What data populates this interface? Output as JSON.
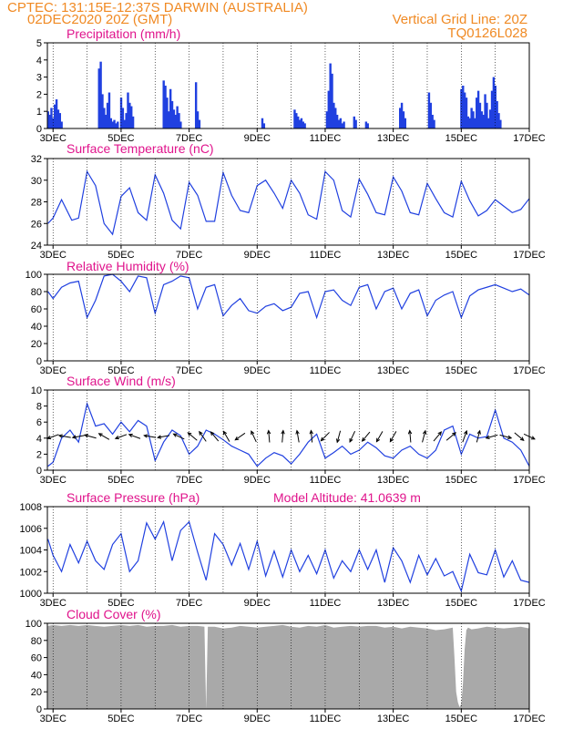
{
  "header": {
    "left1": "CPTEC:    131:15E-12:37S   DARWIN (AUSTRALIA)",
    "left2": "02DEC2020 20Z (GMT)",
    "right1": "Vertical Grid Line: 20Z",
    "right2": "TQ0126L028"
  },
  "colors": {
    "header": "#f08a24",
    "title": "#e0148c",
    "line": "#2040e0",
    "cloud": "#a9a9a9",
    "arrow": "#000000"
  },
  "x_axis": {
    "start_day": 2.833,
    "end_day": 17.0,
    "tick_days": [
      3,
      5,
      7,
      9,
      11,
      13,
      15,
      17
    ],
    "tick_labels": [
      "3DEC",
      "5DEC",
      "7DEC",
      "9DEC",
      "11DEC",
      "13DEC",
      "15DEC",
      "17DEC"
    ]
  },
  "chart_data": [
    {
      "type": "bar",
      "title": "Precipitation (mm/h)",
      "ylim": [
        0,
        5
      ],
      "yticks": [
        "0",
        "1",
        "2",
        "3",
        "4",
        "5"
      ],
      "x": [
        2.85,
        2.9,
        2.95,
        3.0,
        3.05,
        3.1,
        3.15,
        3.2,
        3.25,
        4.35,
        4.4,
        4.45,
        4.5,
        4.55,
        4.6,
        4.65,
        4.7,
        4.75,
        4.8,
        4.85,
        4.9,
        5.0,
        5.05,
        5.1,
        5.15,
        5.2,
        5.25,
        5.3,
        5.35,
        6.25,
        6.3,
        6.35,
        6.4,
        6.45,
        6.5,
        6.55,
        6.6,
        6.65,
        6.7,
        6.75,
        7.2,
        7.25,
        7.3,
        9.15,
        9.2,
        10.1,
        10.15,
        10.2,
        10.25,
        10.3,
        10.35,
        10.4,
        11.05,
        11.1,
        11.15,
        11.2,
        11.25,
        11.3,
        11.35,
        11.4,
        11.45,
        11.5,
        11.55,
        11.85,
        11.9,
        12.2,
        12.25,
        13.2,
        13.25,
        13.3,
        13.35,
        14.05,
        14.1,
        14.15,
        14.2,
        15.0,
        15.05,
        15.1,
        15.15,
        15.2,
        15.25,
        15.3,
        15.35,
        15.4,
        15.45,
        15.5,
        15.55,
        15.6,
        15.65,
        15.7,
        15.75,
        15.8,
        15.85,
        15.9,
        15.95,
        16.0,
        16.05,
        16.1,
        16.15
      ],
      "values": [
        1.0,
        0.8,
        1.2,
        0.6,
        1.4,
        1.7,
        1.1,
        0.9,
        0.4,
        3.5,
        3.9,
        2.0,
        1.2,
        0.8,
        1.5,
        2.1,
        0.6,
        0.4,
        0.5,
        0.3,
        0.4,
        1.8,
        1.2,
        0.5,
        0.9,
        2.1,
        1.5,
        1.3,
        0.7,
        2.8,
        2.5,
        1.8,
        1.0,
        2.3,
        1.6,
        1.1,
        0.8,
        1.3,
        0.9,
        0.4,
        2.7,
        1.0,
        0.5,
        0.6,
        0.3,
        1.1,
        0.9,
        0.7,
        0.5,
        0.6,
        0.4,
        0.3,
        1.0,
        2.2,
        3.8,
        3.2,
        1.5,
        1.2,
        0.8,
        0.5,
        0.6,
        0.3,
        0.4,
        0.7,
        0.5,
        0.4,
        0.3,
        1.2,
        1.5,
        1.0,
        0.6,
        2.1,
        1.5,
        0.8,
        0.5,
        2.3,
        2.5,
        2.1,
        1.8,
        0.7,
        0.6,
        1.2,
        1.0,
        0.6,
        1.8,
        2.2,
        1.5,
        1.0,
        0.8,
        2.0,
        1.5,
        0.6,
        1.1,
        2.2,
        3.0,
        2.5,
        1.6,
        0.9,
        0.5
      ]
    },
    {
      "type": "line",
      "title": "Surface Temperature (nC)",
      "ylim": [
        24,
        32
      ],
      "yticks": [
        "24",
        "26",
        "28",
        "30",
        "32"
      ],
      "x": [
        2.85,
        3.0,
        3.25,
        3.55,
        3.75,
        4.0,
        4.25,
        4.5,
        4.75,
        5.0,
        5.25,
        5.5,
        5.75,
        6.0,
        6.25,
        6.5,
        6.75,
        7.0,
        7.25,
        7.5,
        7.75,
        8.0,
        8.25,
        8.5,
        8.75,
        9.0,
        9.25,
        9.5,
        9.75,
        10.0,
        10.25,
        10.5,
        10.75,
        11.0,
        11.25,
        11.5,
        11.75,
        12.0,
        12.25,
        12.5,
        12.75,
        13.0,
        13.25,
        13.5,
        13.75,
        14.0,
        14.25,
        14.5,
        14.75,
        15.0,
        15.25,
        15.5,
        15.75,
        16.0,
        16.25,
        16.5,
        16.75,
        17.0
      ],
      "values": [
        26.0,
        26.5,
        28.2,
        26.3,
        26.5,
        30.8,
        29.5,
        26.0,
        25.0,
        28.5,
        29.3,
        27.0,
        26.3,
        30.5,
        28.8,
        26.3,
        25.5,
        29.8,
        28.6,
        26.2,
        26.2,
        30.7,
        28.6,
        27.2,
        27.0,
        29.5,
        30.0,
        28.8,
        27.4,
        30.0,
        28.8,
        26.8,
        26.4,
        30.8,
        30.0,
        27.2,
        26.6,
        30.1,
        28.7,
        27.0,
        26.8,
        30.3,
        29.0,
        27.0,
        26.8,
        29.7,
        28.3,
        27.0,
        26.6,
        29.9,
        28.1,
        26.7,
        27.2,
        28.2,
        27.6,
        27.0,
        27.3,
        28.3
      ]
    },
    {
      "type": "line",
      "title": "Relative Humidity (%)",
      "ylim": [
        0,
        100
      ],
      "yticks": [
        "0",
        "20",
        "40",
        "60",
        "80",
        "100"
      ],
      "x": [
        2.85,
        3.0,
        3.25,
        3.5,
        3.75,
        4.0,
        4.25,
        4.5,
        4.75,
        5.0,
        5.25,
        5.5,
        5.75,
        6.0,
        6.25,
        6.5,
        6.75,
        7.0,
        7.25,
        7.5,
        7.75,
        8.0,
        8.25,
        8.5,
        8.75,
        9.0,
        9.25,
        9.5,
        9.75,
        10.0,
        10.25,
        10.5,
        10.75,
        11.0,
        11.25,
        11.5,
        11.75,
        12.0,
        12.25,
        12.5,
        12.75,
        13.0,
        13.25,
        13.5,
        13.75,
        14.0,
        14.25,
        14.5,
        14.75,
        15.0,
        15.25,
        15.5,
        15.75,
        16.0,
        16.25,
        16.5,
        16.75,
        17.0
      ],
      "values": [
        80,
        72,
        85,
        90,
        92,
        50,
        70,
        98,
        100,
        92,
        80,
        98,
        96,
        55,
        88,
        92,
        98,
        96,
        60,
        85,
        88,
        52,
        64,
        72,
        58,
        55,
        63,
        66,
        58,
        62,
        78,
        80,
        50,
        80,
        82,
        70,
        64,
        85,
        88,
        60,
        80,
        84,
        60,
        78,
        82,
        52,
        70,
        76,
        80,
        50,
        75,
        82,
        85,
        88,
        84,
        80,
        83,
        76
      ]
    },
    {
      "type": "line",
      "title": "Surface Wind (m/s)",
      "ylim": [
        0,
        10
      ],
      "yticks": [
        "0",
        "2",
        "4",
        "6",
        "8",
        "10"
      ],
      "x": [
        2.85,
        3.0,
        3.25,
        3.5,
        3.75,
        4.0,
        4.25,
        4.5,
        4.75,
        5.0,
        5.25,
        5.5,
        5.75,
        6.0,
        6.25,
        6.5,
        6.75,
        7.0,
        7.25,
        7.5,
        7.75,
        8.0,
        8.25,
        8.5,
        8.75,
        9.0,
        9.25,
        9.5,
        9.75,
        10.0,
        10.25,
        10.5,
        10.75,
        11.0,
        11.25,
        11.5,
        11.75,
        12.0,
        12.25,
        12.5,
        12.75,
        13.0,
        13.25,
        13.5,
        13.75,
        14.0,
        14.25,
        14.5,
        14.75,
        15.0,
        15.25,
        15.5,
        15.75,
        16.0,
        16.25,
        16.5,
        16.75,
        17.0
      ],
      "values": [
        0.5,
        1.0,
        4.0,
        5.0,
        3.5,
        8.3,
        5.5,
        5.8,
        4.5,
        6.0,
        4.8,
        6.2,
        5.5,
        1.2,
        3.5,
        5.0,
        4.3,
        2.0,
        3.0,
        5.0,
        4.5,
        3.8,
        3.0,
        2.5,
        2.0,
        0.5,
        1.5,
        2.2,
        1.8,
        0.8,
        2.0,
        3.5,
        4.5,
        1.5,
        2.2,
        3.0,
        2.0,
        2.5,
        3.5,
        2.8,
        1.8,
        1.5,
        2.5,
        3.0,
        2.0,
        1.5,
        2.5,
        5.0,
        5.5,
        2.0,
        4.5,
        4.0,
        4.2,
        7.5,
        4.0,
        3.5,
        2.5,
        0.5
      ],
      "arrows_x": [
        3.0,
        3.35,
        3.75,
        4.1,
        4.5,
        5.0,
        5.4,
        5.85,
        6.25,
        6.7,
        7.1,
        7.4,
        7.75,
        8.1,
        8.5,
        8.9,
        9.35,
        9.75,
        10.2,
        10.6,
        11.0,
        11.4,
        11.8,
        12.2,
        12.6,
        13.0,
        13.5,
        13.9,
        14.3,
        14.7,
        15.1,
        15.5,
        15.9,
        16.3,
        16.7,
        17.0
      ],
      "arrows_dir": [
        200,
        170,
        190,
        165,
        150,
        200,
        160,
        170,
        190,
        155,
        140,
        125,
        130,
        120,
        215,
        115,
        95,
        85,
        100,
        95,
        225,
        255,
        245,
        230,
        240,
        240,
        95,
        75,
        50,
        40,
        70,
        75,
        195,
        345,
        320,
        335
      ]
    },
    {
      "type": "line",
      "title": "Surface Pressure (hPa)",
      "subtitle": "Model Altitude: 41.0639 m",
      "ylim": [
        1000,
        1008
      ],
      "yticks": [
        "1000",
        "1002",
        "1004",
        "1006",
        "1008"
      ],
      "x": [
        2.85,
        3.0,
        3.25,
        3.5,
        3.75,
        4.0,
        4.25,
        4.5,
        4.75,
        5.0,
        5.25,
        5.5,
        5.75,
        6.0,
        6.25,
        6.5,
        6.75,
        7.0,
        7.25,
        7.5,
        7.75,
        8.0,
        8.25,
        8.5,
        8.75,
        9.0,
        9.25,
        9.5,
        9.75,
        10.0,
        10.25,
        10.5,
        10.75,
        11.0,
        11.25,
        11.5,
        11.75,
        12.0,
        12.25,
        12.5,
        12.75,
        13.0,
        13.25,
        13.5,
        13.75,
        14.0,
        14.25,
        14.5,
        14.75,
        15.0,
        15.25,
        15.5,
        15.75,
        16.0,
        16.25,
        16.5,
        16.75,
        17.0
      ],
      "values": [
        1005.0,
        1003.5,
        1002.0,
        1004.5,
        1002.8,
        1004.8,
        1003.0,
        1002.2,
        1004.5,
        1005.5,
        1002.0,
        1003.0,
        1006.5,
        1005.0,
        1006.6,
        1003.0,
        1005.8,
        1006.6,
        1003.8,
        1001.2,
        1005.5,
        1004.5,
        1002.6,
        1004.6,
        1002.2,
        1004.8,
        1001.6,
        1003.9,
        1001.5,
        1004.0,
        1002.0,
        1003.5,
        1001.8,
        1004.0,
        1001.4,
        1003.0,
        1002.0,
        1004.0,
        1002.2,
        1004.0,
        1001.0,
        1004.2,
        1003.0,
        1001.0,
        1003.5,
        1001.7,
        1003.2,
        1001.6,
        1002.0,
        1000.2,
        1003.6,
        1001.9,
        1001.7,
        1004.0,
        1001.5,
        1003.0,
        1001.2,
        1001.0
      ]
    },
    {
      "type": "area",
      "title": "Cloud Cover (%)",
      "ylim": [
        0,
        100
      ],
      "yticks": [
        "0",
        "20",
        "40",
        "60",
        "80",
        "100"
      ],
      "x": [
        2.85,
        3.0,
        3.25,
        3.5,
        3.75,
        4.0,
        4.25,
        4.5,
        4.75,
        5.0,
        5.25,
        5.5,
        5.75,
        6.0,
        6.25,
        6.5,
        6.75,
        7.0,
        7.25,
        7.45,
        7.5,
        7.55,
        7.75,
        8.0,
        8.25,
        8.5,
        8.75,
        9.0,
        9.25,
        9.5,
        9.75,
        10.0,
        10.25,
        10.5,
        10.75,
        11.0,
        11.25,
        11.5,
        11.75,
        12.0,
        12.25,
        12.5,
        12.75,
        13.0,
        13.25,
        13.5,
        13.75,
        14.0,
        14.25,
        14.5,
        14.75,
        14.8,
        14.85,
        14.9,
        14.95,
        15.0,
        15.05,
        15.1,
        15.15,
        15.2,
        15.25,
        15.3,
        15.5,
        15.75,
        16.0,
        16.25,
        16.5,
        16.75,
        17.0
      ],
      "values": [
        97,
        98,
        97,
        98,
        97,
        98,
        97,
        96,
        97,
        98,
        97,
        98,
        96,
        97,
        97,
        98,
        96,
        97,
        97,
        96,
        0,
        96,
        96,
        94,
        95,
        97,
        96,
        95,
        96,
        97,
        98,
        96,
        95,
        97,
        96,
        98,
        95,
        96,
        97,
        96,
        97,
        97,
        95,
        96,
        94,
        96,
        95,
        94,
        92,
        93,
        95,
        60,
        20,
        8,
        2,
        6,
        30,
        70,
        92,
        95,
        94,
        93,
        94,
        96,
        95,
        94,
        95,
        96,
        94
      ]
    }
  ]
}
